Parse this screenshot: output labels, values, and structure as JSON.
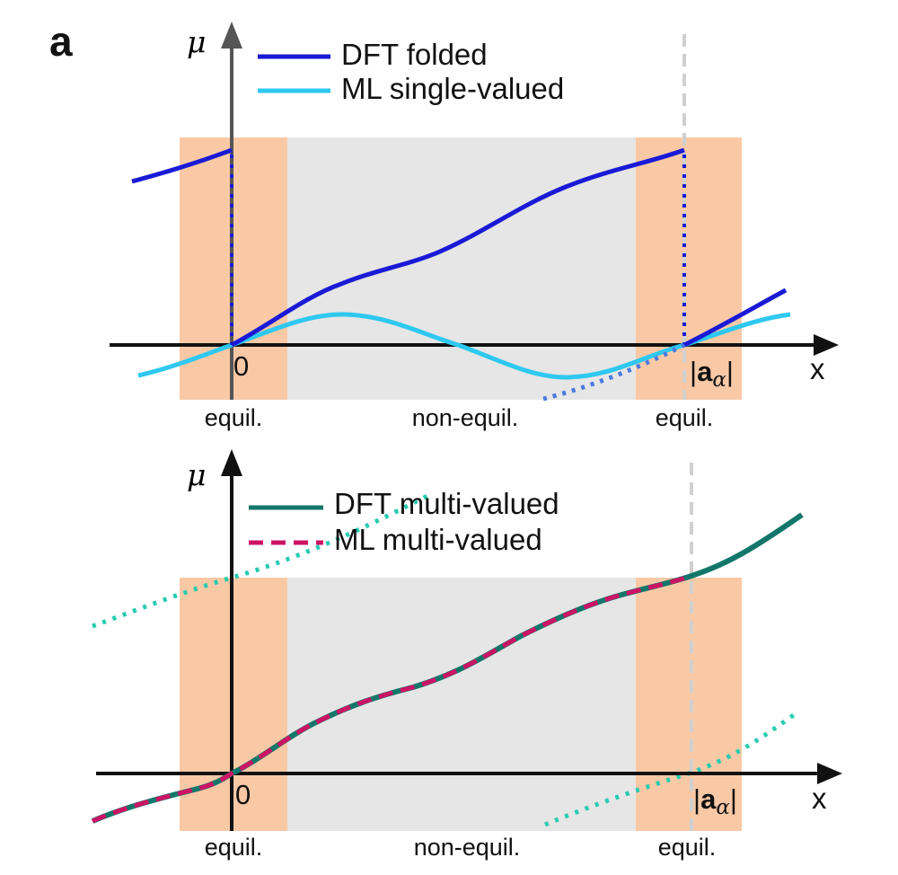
{
  "panel_label": "a",
  "colors": {
    "equil_region": "#f9c9a6",
    "nonequil_region": "#e6e6e6",
    "dft_folded": "#1a1ad6",
    "ml_single": "#2ec8f0",
    "dft_multi": "#12776a",
    "ml_multi": "#cc1464",
    "periodic_copy": "#27cbb0",
    "guide_line": "#d0d0d0",
    "axis": "#111111"
  },
  "top_panel": {
    "y_axis_label": "μ",
    "x_axis_label": "x",
    "origin_label": "0",
    "period_label": {
      "open": "|",
      "vector": "a",
      "subscript": "α",
      "close": "|"
    },
    "legend": [
      {
        "label": "DFT folded",
        "style": "solid",
        "color_key": "dft_folded"
      },
      {
        "label": "ML single-valued",
        "style": "solid",
        "color_key": "ml_single"
      }
    ],
    "region_labels": [
      "equil.",
      "non-equil.",
      "equil."
    ]
  },
  "bottom_panel": {
    "y_axis_label": "μ",
    "x_axis_label": "x",
    "origin_label": "0",
    "period_label": {
      "open": "|",
      "vector": "a",
      "subscript": "α",
      "close": "|"
    },
    "legend": [
      {
        "label": "DFT multi-valued",
        "style": "solid",
        "color_key": "dft_multi"
      },
      {
        "label": "ML multi-valued",
        "style": "dashed",
        "color_key": "ml_multi"
      }
    ],
    "region_labels": [
      "equil.",
      "non-equil.",
      "equil."
    ]
  }
}
